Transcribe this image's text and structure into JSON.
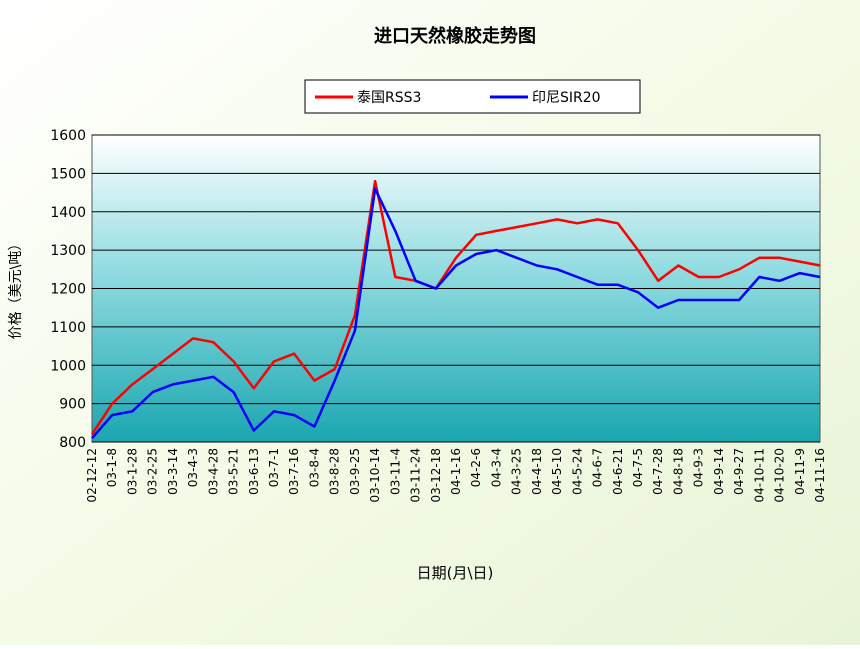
{
  "chart_data": {
    "type": "line",
    "title": "进口天然橡胶走势图",
    "x_label": "日期(月\\日)",
    "y_label": "价格（美元\\吨）",
    "categories": [
      "02-12-12",
      "03-1-8",
      "03-1-28",
      "03-2-25",
      "03-3-14",
      "03-4-3",
      "03-4-28",
      "03-5-21",
      "03-6-13",
      "03-7-1",
      "03-7-16",
      "03-8-4",
      "03-8-28",
      "03-9-25",
      "03-10-14",
      "03-11-4",
      "03-11-24",
      "03-12-18",
      "04-1-16",
      "04-2-6",
      "04-3-4",
      "04-3-25",
      "04-4-18",
      "04-5-10",
      "04-5-24",
      "04-6-7",
      "04-6-21",
      "04-7-5",
      "04-7-28",
      "04-8-18",
      "04-9-3",
      "04-9-14",
      "04-9-27",
      "04-10-11",
      "04-10-20",
      "04-11-9",
      "04-11-16"
    ],
    "series": [
      {
        "name": "泰国RSS3",
        "color": "#ff0000",
        "values": [
          820,
          900,
          950,
          990,
          1030,
          1070,
          1060,
          1010,
          940,
          1010,
          1030,
          960,
          990,
          1130,
          1480,
          1230,
          1220,
          1200,
          1280,
          1340,
          1350,
          1360,
          1370,
          1380,
          1370,
          1380,
          1370,
          1300,
          1220,
          1260,
          1230,
          1230,
          1250,
          1280,
          1280,
          1270,
          1260
        ]
      },
      {
        "name": "印尼SIR20",
        "color": "#0000ff",
        "values": [
          810,
          870,
          880,
          930,
          950,
          960,
          970,
          930,
          830,
          880,
          870,
          840,
          960,
          1090,
          1460,
          1350,
          1220,
          1200,
          1260,
          1290,
          1300,
          1280,
          1260,
          1250,
          1230,
          1210,
          1210,
          1190,
          1150,
          1170,
          1170,
          1170,
          1170,
          1230,
          1220,
          1240,
          1230
        ]
      }
    ],
    "ylim": [
      800,
      1600
    ],
    "yticks": [
      800,
      900,
      1000,
      1100,
      1200,
      1300,
      1400,
      1500,
      1600
    ],
    "grid": true
  }
}
